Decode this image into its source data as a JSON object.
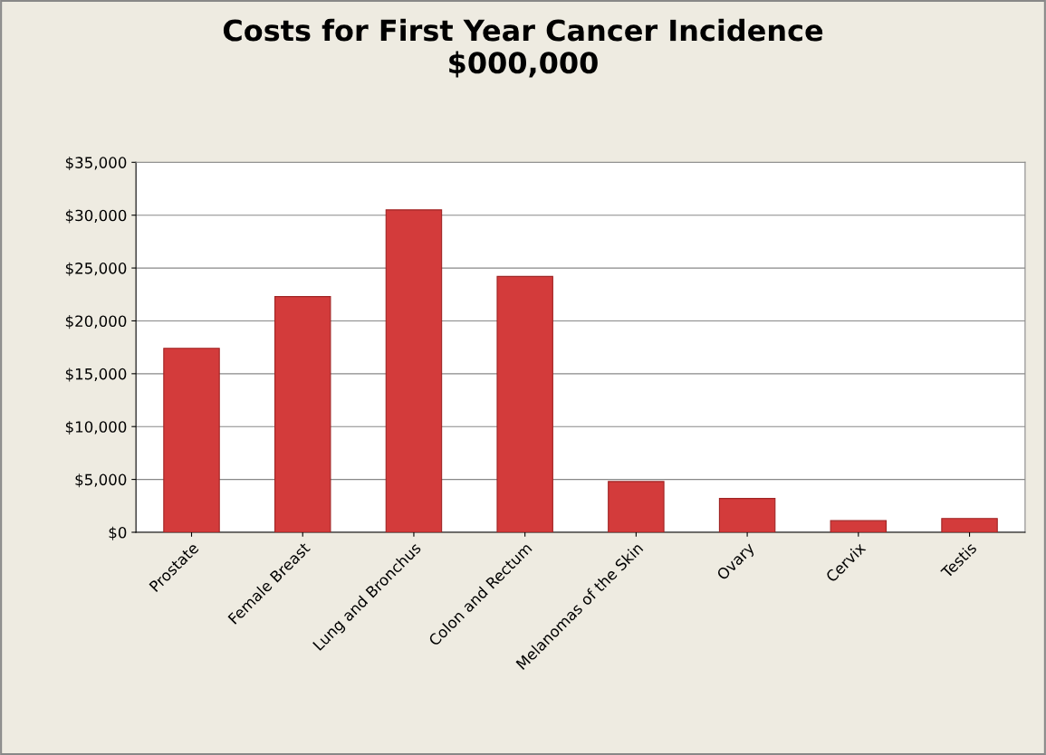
{
  "chart_data": {
    "type": "bar",
    "title": "Costs for First Year Cancer Incidence\n$000,000",
    "categories": [
      "Prostate",
      "Female Breast",
      "Lung and Bronchus",
      "Colon and Rectum",
      "Melanomas of the Skin",
      "Ovary",
      "Cervix",
      "Testis"
    ],
    "values": [
      17400,
      22300,
      30500,
      24200,
      4800,
      3200,
      1100,
      1300
    ],
    "color": "#d33b3b",
    "ylim": [
      0,
      35000
    ],
    "yticks": [
      {
        "value": 0,
        "label": "$0"
      },
      {
        "value": 5000,
        "label": "$5,000"
      },
      {
        "value": 10000,
        "label": "$10,000"
      },
      {
        "value": 15000,
        "label": "$15,000"
      },
      {
        "value": 20000,
        "label": "$20,000"
      },
      {
        "value": 25000,
        "label": "$25,000"
      },
      {
        "value": 30000,
        "label": "$30,000"
      },
      {
        "value": 35000,
        "label": "$35,000"
      }
    ],
    "grid": "y",
    "legend": false
  }
}
